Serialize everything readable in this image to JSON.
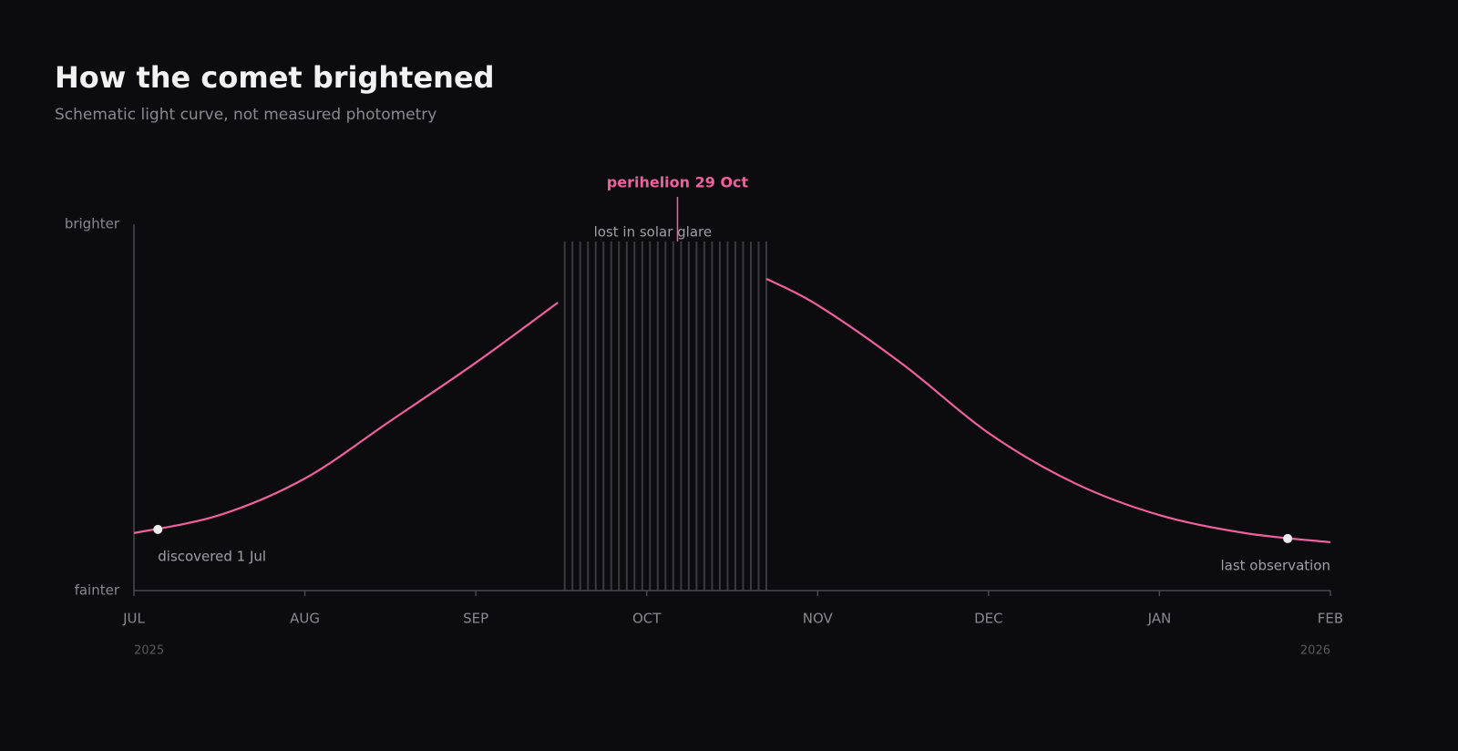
{
  "chart_data": {
    "type": "line",
    "title": "How the comet brightened",
    "subtitle": "Schematic light curve, not measured photometry",
    "xlim": [
      0,
      7
    ],
    "xticks": [
      {
        "value": 0,
        "label": "JUL"
      },
      {
        "value": 1,
        "label": "AUG"
      },
      {
        "value": 2,
        "label": "SEP"
      },
      {
        "value": 3,
        "label": "OCT"
      },
      {
        "value": 4,
        "label": "NOV"
      },
      {
        "value": 5,
        "label": "DEC"
      },
      {
        "value": 6,
        "label": "JAN"
      },
      {
        "value": 7,
        "label": "FEB"
      }
    ],
    "year_labels": [
      {
        "value": 0,
        "label": "2025"
      },
      {
        "value": 7,
        "label": "2026"
      }
    ],
    "ylim": [
      0,
      1
    ],
    "yticks": [
      {
        "value": 0,
        "label": "fainter"
      },
      {
        "value": 1,
        "label": "brighter"
      }
    ],
    "series": [
      {
        "name": "light curve",
        "color": "#f0609e",
        "x": [
          0,
          0.5,
          1,
          1.5,
          2,
          2.48,
          3.1,
          3.7,
          4,
          4.5,
          5,
          5.5,
          6,
          6.5,
          7
        ],
        "values": [
          0.157,
          0.206,
          0.306,
          0.463,
          0.622,
          0.786,
          null,
          0.851,
          0.779,
          0.617,
          0.43,
          0.294,
          0.206,
          0.157,
          0.132
        ]
      }
    ],
    "glare": {
      "label": "lost in solar glare",
      "x": [
        2.52,
        3.7
      ],
      "top": 0.953
    },
    "perihelion": {
      "label": "perihelion 29 Oct",
      "x": 3.18
    },
    "points": [
      {
        "label": "discovered 1 Jul",
        "x": 0.14,
        "y": 0.167
      },
      {
        "label": "last observation",
        "x": 6.75,
        "y": 0.142
      }
    ]
  }
}
